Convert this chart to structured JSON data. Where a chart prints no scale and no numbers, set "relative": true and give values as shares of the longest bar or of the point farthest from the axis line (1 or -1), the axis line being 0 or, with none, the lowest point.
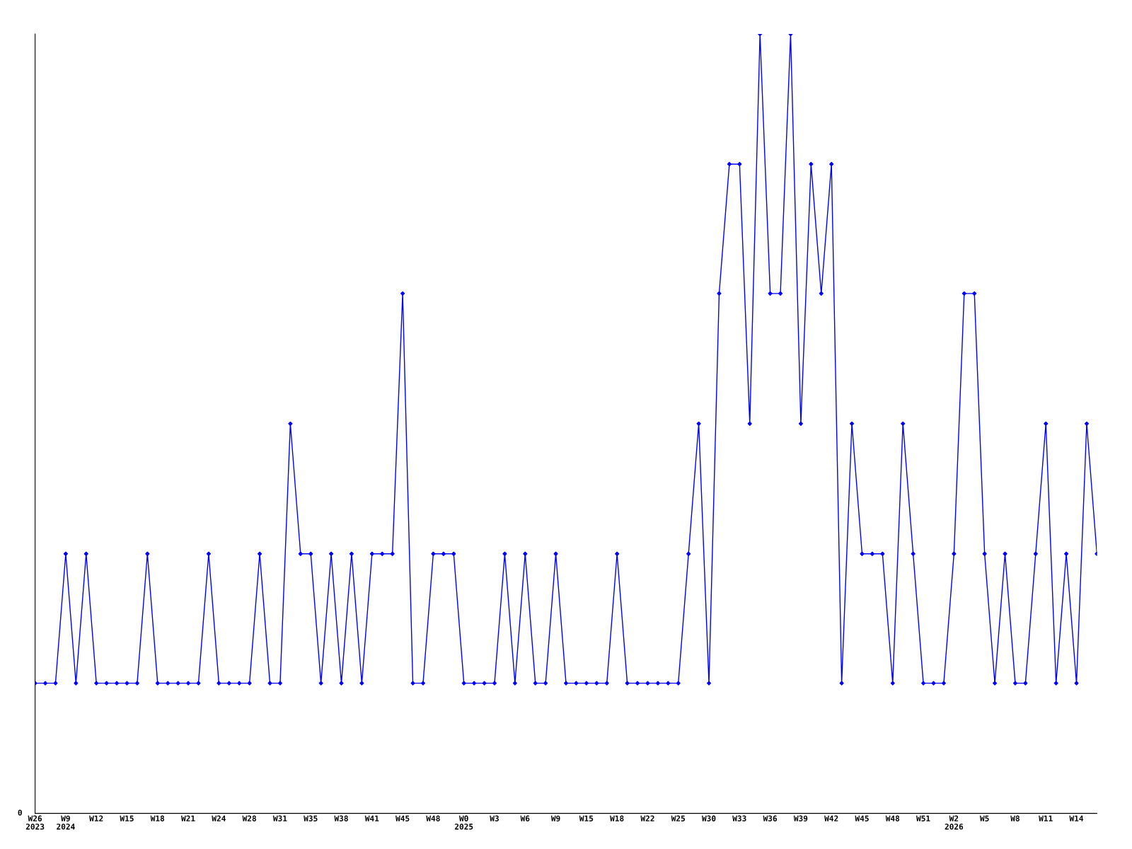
{
  "chart_data": {
    "type": "line",
    "relative": true,
    "marker": "diamond",
    "line_style": "solid",
    "grid": false,
    "legend": false,
    "categories": [
      "W26\n2023",
      null,
      null,
      "W9\n2024",
      null,
      null,
      "W12",
      null,
      null,
      "W15",
      null,
      null,
      "W18",
      null,
      null,
      "W21",
      null,
      null,
      "W24",
      null,
      null,
      "W28",
      null,
      null,
      "W31",
      null,
      null,
      "W35",
      null,
      null,
      "W38",
      null,
      null,
      "W41",
      null,
      null,
      "W45",
      null,
      null,
      "W48",
      null,
      null,
      "W0\n2025",
      null,
      null,
      "W3",
      null,
      null,
      "W6",
      null,
      null,
      "W9",
      null,
      null,
      "W15",
      null,
      null,
      "W18",
      null,
      null,
      "W22",
      null,
      null,
      "W25",
      null,
      null,
      "W30",
      null,
      null,
      "W33",
      null,
      null,
      "W36",
      null,
      null,
      "W39",
      null,
      null,
      "W42",
      null,
      null,
      "W45",
      null,
      null,
      "W48",
      null,
      null,
      "W51",
      null,
      null,
      "W2\n2026",
      null,
      null,
      "W5",
      null,
      null,
      "W8",
      null,
      null,
      "W11",
      null,
      null,
      "W14",
      null,
      null
    ],
    "series": [
      {
        "color": "#0000ff",
        "values": [
          0.167,
          0.167,
          0.167,
          0.333,
          0.167,
          0.333,
          0.167,
          0.167,
          0.167,
          0.167,
          0.167,
          0.333,
          0.167,
          0.167,
          0.167,
          0.167,
          0.167,
          0.333,
          0.167,
          0.167,
          0.167,
          0.167,
          0.333,
          0.167,
          0.167,
          0.5,
          0.333,
          0.333,
          0.167,
          0.333,
          0.167,
          0.333,
          0.167,
          0.333,
          0.333,
          0.333,
          0.667,
          0.167,
          0.167,
          0.333,
          0.333,
          0.333,
          0.167,
          0.167,
          0.167,
          0.167,
          0.333,
          0.167,
          0.333,
          0.167,
          0.167,
          0.333,
          0.167,
          0.167,
          0.167,
          0.167,
          0.167,
          0.333,
          0.167,
          0.167,
          0.167,
          0.167,
          0.167,
          0.167,
          0.333,
          0.5,
          0.167,
          0.667,
          0.833,
          0.833,
          0.5,
          1,
          0.667,
          0.667,
          1,
          0.5,
          0.833,
          0.667,
          0.833,
          0.167,
          0.5,
          0.333,
          0.333,
          0.333,
          0.167,
          0.5,
          0.333,
          0.167,
          0.167,
          0.167,
          0.333,
          0.667,
          0.667,
          0.333,
          0.167,
          0.333,
          0.167,
          0.167,
          0.333,
          0.5,
          0.167,
          0.333,
          0.167,
          0.5,
          0.333
        ]
      }
    ],
    "annotations": [
      "0"
    ]
  }
}
